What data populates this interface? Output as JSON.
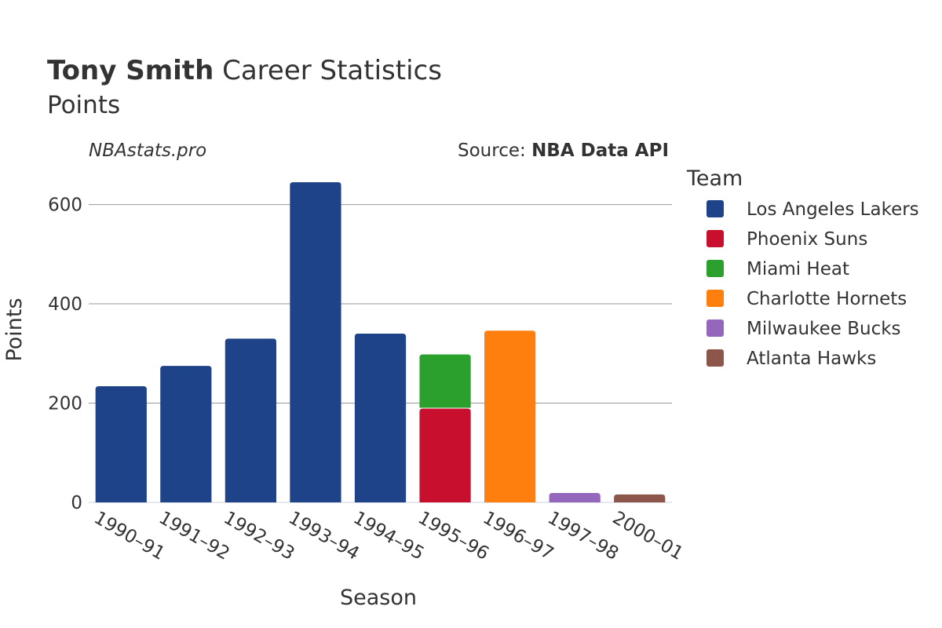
{
  "header": {
    "title_bold": "Tony Smith",
    "title_rest": " Career Statistics",
    "subtitle": "Points",
    "credit": "NBAstats.pro",
    "source_label": "Source: ",
    "source_name": "NBA Data API"
  },
  "legend": {
    "title": "Team"
  },
  "chart_data": {
    "type": "bar",
    "stacked": true,
    "title": "Tony Smith Career Statistics",
    "subtitle": "Points",
    "xlabel": "Season",
    "ylabel": "Points",
    "ylim": [
      0,
      680
    ],
    "yticks": [
      0,
      200,
      400,
      600
    ],
    "grid": true,
    "legend_position": "right",
    "categories": [
      "1990–91",
      "1991–92",
      "1992–93",
      "1993–94",
      "1994–95",
      "1995–96",
      "1996–97",
      "1997–98",
      "2000–01"
    ],
    "series": [
      {
        "name": "Los Angeles Lakers",
        "color": "#1f4388",
        "values": [
          234,
          275,
          330,
          645,
          340,
          null,
          null,
          null,
          null
        ]
      },
      {
        "name": "Phoenix Suns",
        "color": "#c8102e",
        "values": [
          null,
          null,
          null,
          null,
          null,
          189,
          null,
          null,
          null
        ]
      },
      {
        "name": "Miami Heat",
        "color": "#2ca02c",
        "values": [
          null,
          null,
          null,
          null,
          null,
          109,
          null,
          null,
          null
        ]
      },
      {
        "name": "Charlotte Hornets",
        "color": "#ff7f0e",
        "values": [
          null,
          null,
          null,
          null,
          null,
          null,
          346,
          null,
          null
        ]
      },
      {
        "name": "Milwaukee Bucks",
        "color": "#9467bd",
        "values": [
          null,
          null,
          null,
          null,
          null,
          null,
          null,
          19,
          null
        ]
      },
      {
        "name": "Atlanta Hawks",
        "color": "#8c564b",
        "values": [
          null,
          null,
          null,
          null,
          null,
          null,
          null,
          null,
          16
        ]
      }
    ]
  }
}
